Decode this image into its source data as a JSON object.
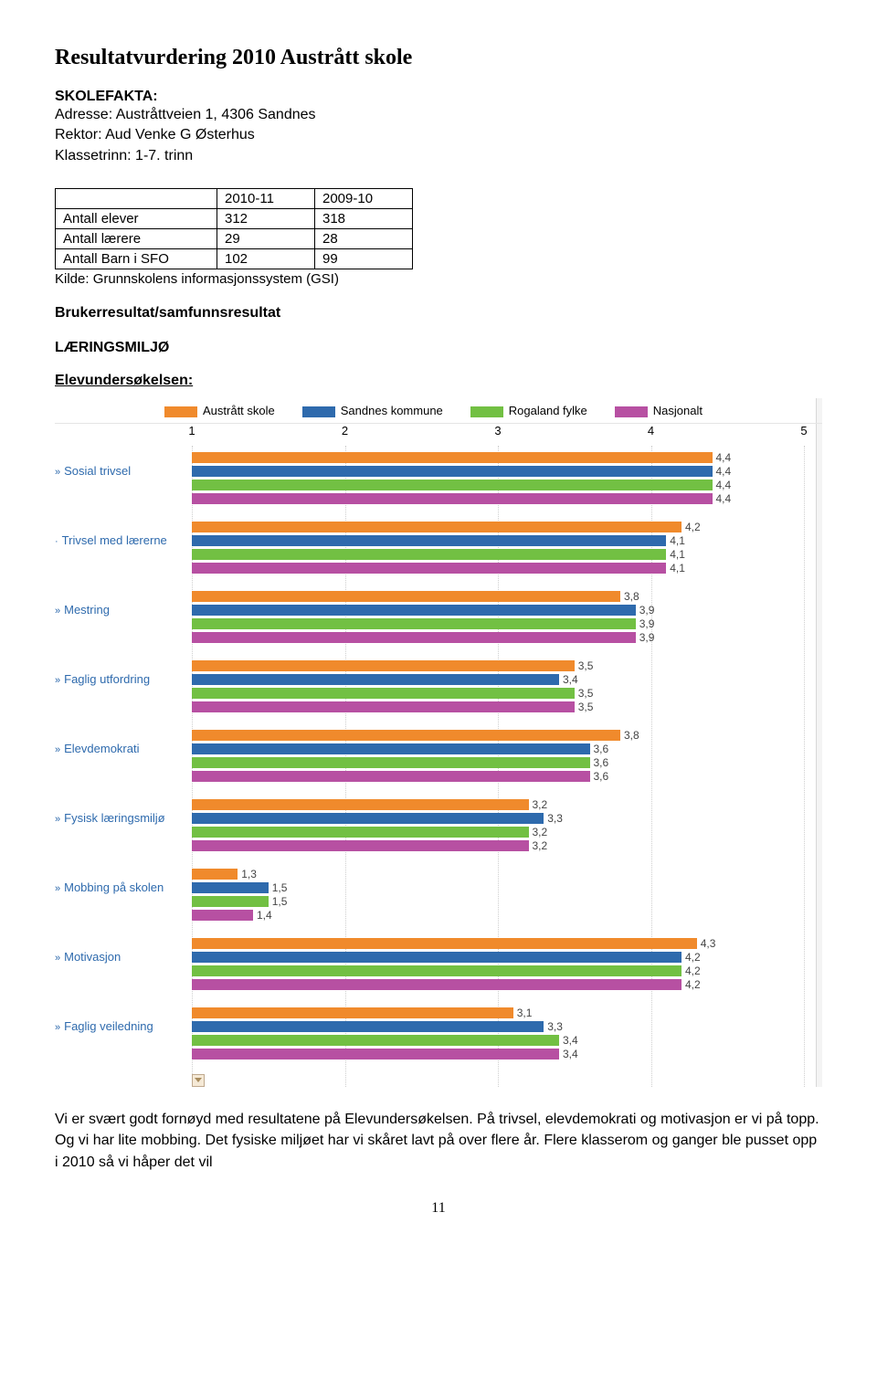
{
  "page_title": "Resultatvurdering 2010 Austrått skole",
  "skolefakta_label": "SKOLEFAKTA:",
  "facts": {
    "adresse": "Adresse: Austråttveien 1, 4306 Sandnes",
    "rektor": "Rektor: Aud Venke G Østerhus",
    "klassetrinn": "Klassetrinn: 1-7. trinn"
  },
  "table": {
    "headers": [
      "",
      "2010-11",
      "2009-10"
    ],
    "rows": [
      [
        "Antall elever",
        "312",
        "318"
      ],
      [
        "Antall lærere",
        "29",
        "28"
      ],
      [
        "Antall Barn i SFO",
        "102",
        "99"
      ]
    ],
    "source": "Kilde: Grunnskolens informasjonssystem (GSI)"
  },
  "section1": "Brukerresultat/samfunnsresultat",
  "section2": "LÆRINGSMILJØ",
  "subheading": "Elevundersøkelsen:",
  "chart": {
    "type": "horizontal-bar-grouped",
    "xlim": [
      1,
      5
    ],
    "ticks": [
      1,
      2,
      3,
      4,
      5
    ],
    "label_color": "#2e6aad",
    "value_fontsize": 12,
    "category_fontsize": 13,
    "grid_color": "#cfcfcf",
    "background_color": "#ffffff",
    "legend": [
      {
        "label": "Austrått skole",
        "color": "#f08a2c"
      },
      {
        "label": "Sandnes kommune",
        "color": "#2e6aad"
      },
      {
        "label": "Rogaland fylke",
        "color": "#72c043"
      },
      {
        "label": "Nasjonalt",
        "color": "#b750a2"
      }
    ],
    "series_colors": [
      "#f08a2c",
      "#2e6aad",
      "#72c043",
      "#b750a2"
    ],
    "categories": [
      {
        "label": "Sosial trivsel",
        "prefix": "»",
        "values": [
          4.4,
          4.4,
          4.4,
          4.4
        ]
      },
      {
        "label": "Trivsel med lærerne",
        "prefix": "·",
        "values": [
          4.2,
          4.1,
          4.1,
          4.1
        ]
      },
      {
        "label": "Mestring",
        "prefix": "»",
        "values": [
          3.8,
          3.9,
          3.9,
          3.9
        ]
      },
      {
        "label": "Faglig utfordring",
        "prefix": "»",
        "values": [
          3.5,
          3.4,
          3.5,
          3.5
        ]
      },
      {
        "label": "Elevdemokrati",
        "prefix": "»",
        "values": [
          3.8,
          3.6,
          3.6,
          3.6
        ]
      },
      {
        "label": "Fysisk læringsmiljø",
        "prefix": "»",
        "values": [
          3.2,
          3.3,
          3.2,
          3.2
        ]
      },
      {
        "label": "Mobbing på skolen",
        "prefix": "»",
        "values": [
          1.3,
          1.5,
          1.5,
          1.4
        ]
      },
      {
        "label": "Motivasjon",
        "prefix": "»",
        "values": [
          4.3,
          4.2,
          4.2,
          4.2
        ]
      },
      {
        "label": "Faglig veiledning",
        "prefix": "»",
        "values": [
          3.1,
          3.3,
          3.4,
          3.4
        ]
      }
    ]
  },
  "body_text": "Vi er svært godt fornøyd med resultatene på Elevundersøkelsen. På trivsel, elevdemokrati og motivasjon er vi på topp. Og vi har lite mobbing. Det fysiske miljøet har vi skåret lavt på over flere år. Flere klasserom og ganger ble pusset opp i 2010 så vi håper det vil",
  "page_number": "11"
}
